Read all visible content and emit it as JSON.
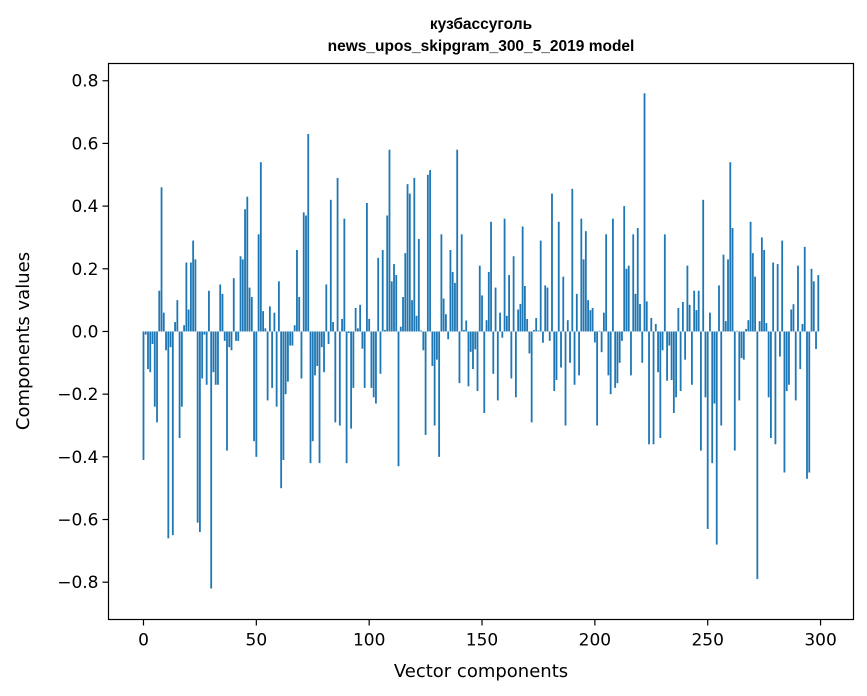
{
  "chart_data": {
    "type": "bar",
    "title": "кузбассуголь",
    "subtitle": "news_upos_skipgram_300_5_2019 model",
    "xlabel": "Vector components",
    "ylabel": "Components values",
    "xlim": [
      -15.5,
      314.6
    ],
    "ylim": [
      -0.919,
      0.855
    ],
    "xticks": [
      0,
      50,
      100,
      150,
      200,
      250,
      300
    ],
    "xtick_labels": [
      "0",
      "50",
      "100",
      "150",
      "200",
      "250",
      "300"
    ],
    "yticks": [
      -0.8,
      -0.6,
      -0.4,
      -0.2,
      0.0,
      0.2,
      0.4,
      0.6,
      0.8
    ],
    "ytick_labels": [
      "−0.8",
      "−0.6",
      "−0.4",
      "−0.2",
      "0.0",
      "0.2",
      "0.4",
      "0.6",
      "0.8"
    ],
    "grid": false,
    "bar_color": "#1f77b4",
    "bar_width": 0.8,
    "values": [
      -0.41,
      -0.01,
      -0.12,
      -0.13,
      -0.04,
      -0.24,
      -0.29,
      0.13,
      0.46,
      0.06,
      -0.06,
      -0.66,
      -0.05,
      -0.65,
      0.03,
      0.1,
      -0.34,
      -0.24,
      0.02,
      0.22,
      0.07,
      0.22,
      0.29,
      0.23,
      -0.61,
      -0.64,
      -0.15,
      -0.01,
      -0.17,
      0.13,
      -0.82,
      -0.13,
      -0.17,
      -0.17,
      0.15,
      0.12,
      -0.03,
      -0.38,
      -0.05,
      -0.06,
      0.17,
      -0.03,
      -0.03,
      0.24,
      0.23,
      0.39,
      0.43,
      0.14,
      0.11,
      -0.35,
      -0.4,
      0.31,
      0.54,
      0.065,
      0.01,
      -0.22,
      0.08,
      -0.18,
      0.06,
      -0.24,
      0.16,
      -0.5,
      -0.41,
      -0.2,
      -0.16,
      -0.045,
      -0.045,
      0.02,
      0.26,
      0.11,
      -0.15,
      0.38,
      0.37,
      0.63,
      -0.42,
      -0.35,
      -0.14,
      -0.11,
      -0.42,
      -0.05,
      -0.13,
      0.15,
      -0.04,
      0.42,
      0.03,
      -0.29,
      0.49,
      -0.3,
      0.04,
      0.36,
      -0.42,
      -0.005,
      -0.31,
      -0.18,
      0.075,
      0.01,
      0.085,
      -0.055,
      -0.18,
      0.41,
      0.04,
      -0.18,
      -0.21,
      -0.23,
      0.235,
      -0.135,
      0.26,
      0.005,
      0.37,
      0.58,
      0.16,
      0.215,
      0.18,
      -0.43,
      0.015,
      0.11,
      0.25,
      0.47,
      0.44,
      0.1,
      0.49,
      0.05,
      0.295,
      0.003,
      -0.06,
      -0.33,
      0.5,
      0.515,
      -0.11,
      -0.3,
      -0.09,
      -0.4,
      0.31,
      0.105,
      0.055,
      -0.025,
      0.26,
      0.19,
      0.155,
      0.58,
      -0.165,
      0.31,
      0.005,
      0.035,
      -0.175,
      -0.065,
      -0.12,
      -0.057,
      -0.19,
      0.21,
      0.115,
      -0.26,
      0.036,
      0.19,
      0.35,
      -0.135,
      0.14,
      -0.22,
      0.06,
      -0.02,
      0.36,
      0.05,
      0.18,
      -0.15,
      0.24,
      -0.21,
      0.07,
      0.088,
      0.335,
      0.145,
      0.04,
      -0.07,
      -0.29,
      0.005,
      0.043,
      0.003,
      0.29,
      -0.036,
      0.147,
      0.14,
      -0.03,
      0.44,
      -0.19,
      -0.155,
      0.35,
      -0.115,
      0.175,
      -0.3,
      0.036,
      -0.1,
      0.455,
      -0.17,
      0.12,
      -0.14,
      0.36,
      0.23,
      0.32,
      0.1,
      0.068,
      0.075,
      -0.035,
      -0.3,
      0.002,
      -0.066,
      0.06,
      0.31,
      -0.14,
      -0.2,
      0.36,
      -0.18,
      -0.165,
      -0.1,
      -0.03,
      0.4,
      0.2,
      0.21,
      -0.14,
      0.31,
      0.12,
      0.33,
      0.088,
      -0.1,
      0.76,
      0.096,
      -0.36,
      0.043,
      -0.36,
      0.024,
      -0.13,
      -0.34,
      -0.06,
      0.31,
      -0.157,
      -0.045,
      -0.155,
      -0.26,
      -0.21,
      0.075,
      -0.19,
      0.094,
      -0.09,
      0.21,
      0.085,
      -0.17,
      0.13,
      0.068,
      0.13,
      -0.38,
      0.42,
      -0.21,
      -0.63,
      0.06,
      -0.42,
      -0.23,
      -0.68,
      0.147,
      -0.3,
      0.245,
      0.033,
      0.23,
      0.54,
      0.33,
      -0.38,
      0.002,
      -0.22,
      -0.085,
      -0.09,
      0.008,
      0.036,
      0.35,
      0.25,
      0.175,
      -0.79,
      0.033,
      0.3,
      0.26,
      0.027,
      -0.21,
      -0.34,
      0.22,
      -0.36,
      0.215,
      -0.08,
      0.29,
      -0.45,
      -0.19,
      -0.17,
      0.07,
      0.087,
      -0.22,
      0.21,
      -0.12,
      0.024,
      0.27,
      -0.47,
      -0.45,
      0.2,
      0.16,
      -0.056,
      0.18
    ]
  }
}
